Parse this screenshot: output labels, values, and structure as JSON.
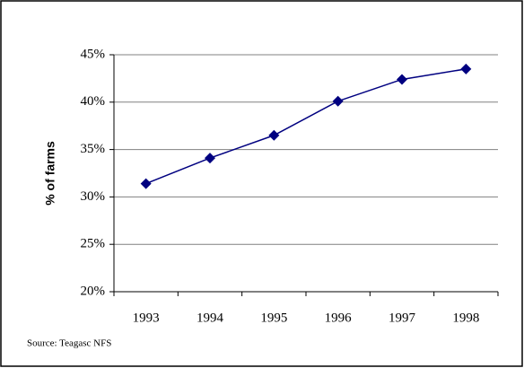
{
  "chart_data": {
    "type": "line",
    "y_label": "% of farms",
    "source": "Source: Teagasc NFS",
    "categories": [
      "1993",
      "1994",
      "1995",
      "1996",
      "1997",
      "1998"
    ],
    "series": [
      {
        "color": "#000080",
        "values": [
          31.4,
          34.1,
          36.5,
          40.1,
          42.4,
          43.5
        ]
      }
    ],
    "ylim": [
      20,
      45
    ],
    "yticks": [
      {
        "value": 20,
        "label": "20%"
      },
      {
        "value": 25,
        "label": "25%"
      },
      {
        "value": 30,
        "label": "30%"
      },
      {
        "value": 35,
        "label": "35%"
      },
      {
        "value": 40,
        "label": "40%"
      },
      {
        "value": 45,
        "label": "45%"
      }
    ],
    "grid": true
  }
}
